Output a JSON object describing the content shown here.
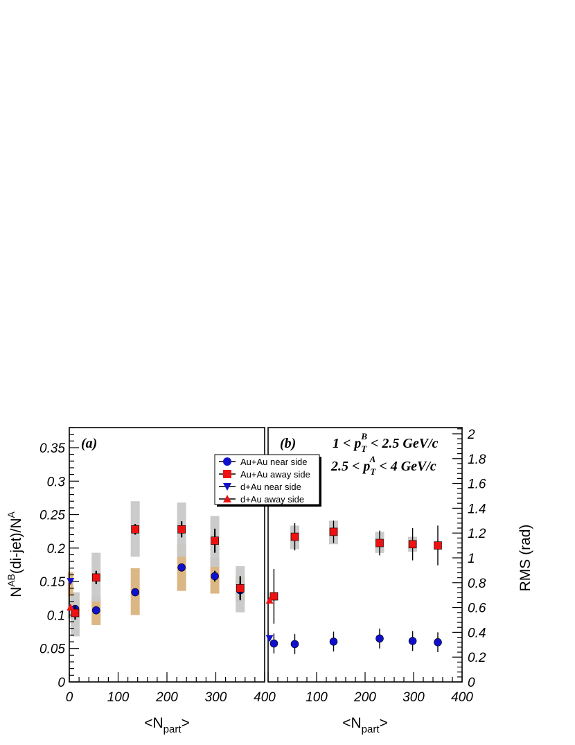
{
  "chart_data": [
    {
      "type": "scatter",
      "panel_label": "(a)",
      "xlabel": {
        "main": "<N",
        "sub": "part",
        "end": ">"
      },
      "ylabel": {
        "main": "N",
        "sup1": "AB",
        "mid": "(di-jet)/N",
        "sup2": "A"
      },
      "xlim": [
        0,
        400
      ],
      "ylim": [
        0,
        0.38
      ],
      "x_ticks": [
        "0",
        "100",
        "200",
        "300",
        "400"
      ],
      "y_ticks": [
        "0",
        "0.05",
        "0.1",
        "0.15",
        "0.2",
        "0.25",
        "0.3",
        "0.35"
      ],
      "series": [
        {
          "name": "Au+Au near side",
          "marker": "circle",
          "color": "#1010cc",
          "points": [
            {
              "x": 12,
              "y": 0.109,
              "err": 0.006,
              "sys": [
                0.095,
                0.122
              ]
            },
            {
              "x": 55,
              "y": 0.107,
              "err": 0.004,
              "sys": [
                0.085,
                0.129
              ]
            },
            {
              "x": 135,
              "y": 0.134,
              "err": 0.004,
              "sys": [
                0.1,
                0.17
              ]
            },
            {
              "x": 230,
              "y": 0.171,
              "err": 0.005,
              "sys": [
                0.136,
                0.206
              ]
            },
            {
              "x": 298,
              "y": 0.158,
              "err": 0.008,
              "sys": [
                0.132,
                0.185
              ]
            },
            {
              "x": 350,
              "y": 0.137,
              "err": 0.012,
              "sys": [
                0.12,
                0.158
              ]
            }
          ]
        },
        {
          "name": "Au+Au away side",
          "marker": "square",
          "color": "#ee1111",
          "points": [
            {
              "x": 12,
              "y": 0.103,
              "err": 0.01,
              "sys": [
                0.068,
                0.134
              ]
            },
            {
              "x": 55,
              "y": 0.156,
              "err": 0.01,
              "sys": [
                0.12,
                0.193
              ]
            },
            {
              "x": 135,
              "y": 0.228,
              "err": 0.008,
              "sys": [
                0.187,
                0.27
              ]
            },
            {
              "x": 230,
              "y": 0.228,
              "err": 0.012,
              "sys": [
                0.187,
                0.268
              ]
            },
            {
              "x": 298,
              "y": 0.211,
              "err": 0.018,
              "sys": [
                0.172,
                0.248
              ]
            },
            {
              "x": 350,
              "y": 0.14,
              "err": 0.018,
              "sys": [
                0.104,
                0.173
              ]
            }
          ]
        },
        {
          "name": "d+Au near side",
          "marker": "triangle-down",
          "color": "#1010cc",
          "points": [
            {
              "x": 2.6,
              "y": 0.15,
              "err": 0.0,
              "sys": [
                0.128,
                0.164
              ]
            }
          ]
        },
        {
          "name": "d+Au away side",
          "marker": "triangle-up",
          "color": "#ee1111",
          "points": [
            {
              "x": 2.6,
              "y": 0.112,
              "err": 0.0,
              "sys": [
                0.095,
                0.128
              ]
            }
          ]
        }
      ],
      "legend_position": "top-right",
      "sys_band_colors": {
        "near": "#d9b37f",
        "away": "#c8c8c8"
      }
    },
    {
      "type": "scatter",
      "panel_label": "(b)",
      "xlabel": {
        "main": "<N",
        "sub": "part",
        "end": ">"
      },
      "ylabel": "RMS (rad)",
      "y_axis_side": "right",
      "xlim": [
        0,
        400
      ],
      "ylim": [
        0,
        2.05
      ],
      "x_ticks": [
        "100",
        "200",
        "300",
        "400"
      ],
      "y_ticks": [
        "0",
        "0.2",
        "0.4",
        "0.6",
        "0.8",
        "1",
        "1.2",
        "1.4",
        "1.6",
        "1.8",
        "2"
      ],
      "cuts": [
        {
          "pre": "1 < p",
          "sub": "T",
          "sup": "B",
          "post": " < 2.5 GeV/c"
        },
        {
          "pre": "2.5 < p",
          "sub": "T",
          "sup": "A",
          "post": " < 4 GeV/c"
        }
      ],
      "series": [
        {
          "name": "Au+Au near side",
          "marker": "circle",
          "color": "#1010cc",
          "points": [
            {
              "x": 12,
              "y": 0.31,
              "err": 0.08
            },
            {
              "x": 55,
              "y": 0.305,
              "err": 0.08
            },
            {
              "x": 135,
              "y": 0.325,
              "err": 0.08
            },
            {
              "x": 230,
              "y": 0.35,
              "err": 0.08
            },
            {
              "x": 298,
              "y": 0.33,
              "err": 0.08
            },
            {
              "x": 350,
              "y": 0.32,
              "err": 0.08
            }
          ]
        },
        {
          "name": "Au+Au away side",
          "marker": "square",
          "color": "#ee1111",
          "points": [
            {
              "x": 12,
              "y": 0.69,
              "err": 0.22,
              "sys": [
                0.655,
                0.725
              ]
            },
            {
              "x": 55,
              "y": 1.17,
              "err": 0.11,
              "sys": [
                1.07,
                1.26
              ]
            },
            {
              "x": 135,
              "y": 1.21,
              "err": 0.09,
              "sys": [
                1.11,
                1.3
              ]
            },
            {
              "x": 230,
              "y": 1.12,
              "err": 0.1,
              "sys": [
                1.04,
                1.21
              ]
            },
            {
              "x": 298,
              "y": 1.11,
              "err": 0.13,
              "sys": [
                1.05,
                1.17
              ]
            },
            {
              "x": 350,
              "y": 1.1,
              "err": 0.16
            }
          ]
        },
        {
          "name": "d+Au near side",
          "marker": "triangle-down",
          "color": "#1010cc",
          "points": [
            {
              "x": 3,
              "y": 0.35
            }
          ]
        },
        {
          "name": "d+Au away side",
          "marker": "triangle-up",
          "color": "#ee1111",
          "points": [
            {
              "x": 3,
              "y": 0.66
            }
          ]
        }
      ],
      "sys_band_color": "#c8c8c8"
    }
  ]
}
